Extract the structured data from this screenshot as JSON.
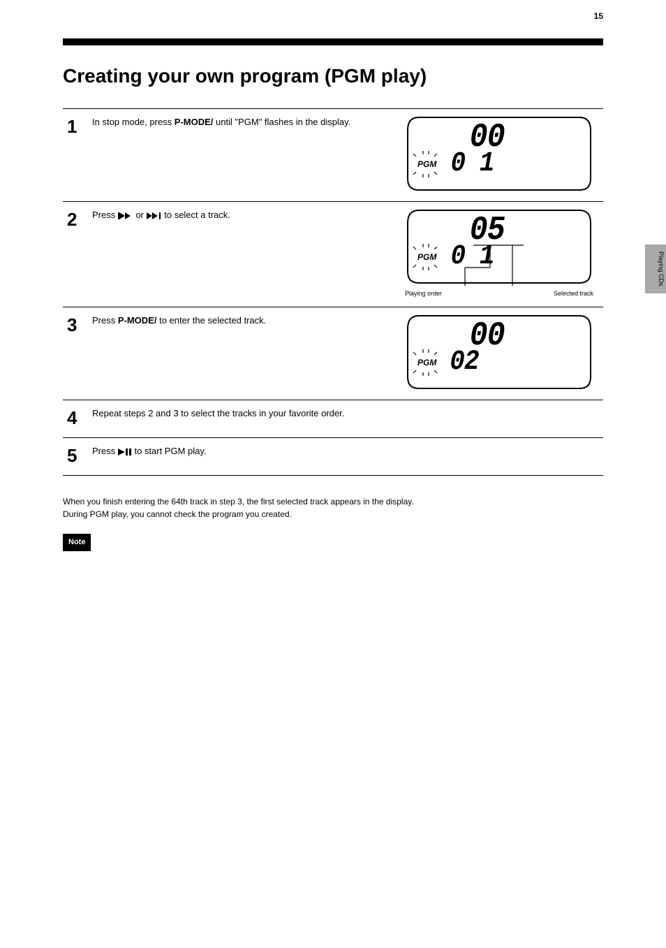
{
  "page_number": "15",
  "tab": "Playing CDs",
  "title": "Creating your own program (PGM play)",
  "steps": [
    {
      "n": "1",
      "html": "In stop mode, press <b>P-MODE/        </b> until \"PGM\" flashes in the display.",
      "display": {
        "big": "00",
        "small": "0 1",
        "pgm": "PGM",
        "flash_pgm": true
      }
    },
    {
      "n": "2",
      "html": "Press <span class='icon'><svg width='22' height='10' viewBox='0 0 22 10'><path fill='#000' d='M0 0h2v10H0z M10 5L2 0v10z M18 5L10 0v10z'/></svg></span> or <span class='icon'><svg width='22' height='10' viewBox='0 0 22 10'><path fill='#000' d='M0 0l8 5-8 5z M8 0l8 5-8 5z M18 0h2v10h-2z'/></svg></span> to select a track.",
      "display": {
        "big": "05",
        "small": "0 1",
        "pgm": "PGM",
        "flash_pgm": true,
        "big_underline": true,
        "cap_left": "Playing order",
        "cap_right": "Selected track"
      }
    },
    {
      "n": "3",
      "html": "Press <b>P-MODE/        </b> to enter the selected track.",
      "display": {
        "big": "00",
        "small": "02",
        "pgm": "PGM",
        "flash_pgm": true
      }
    },
    {
      "n": "4",
      "html": "Repeat steps 2 and 3 to select the tracks in your favorite order."
    },
    {
      "n": "5",
      "html": "Press <span class='icon'><svg width='20' height='10' viewBox='0 0 20 10'><path fill='#000' d='M0 0l10 5L0 10z'/><rect x='11' y='0' width='3' height='10' fill='#000'/><rect x='16' y='0' width='3' height='10' fill='#000'/></svg></span> to start PGM play."
    }
  ],
  "notes_heading": "",
  "notes_body": "When you finish entering the 64th track in step 3, the first selected track appears in the display.<br>During PGM play, you cannot check the program you created.",
  "badge": "Note"
}
